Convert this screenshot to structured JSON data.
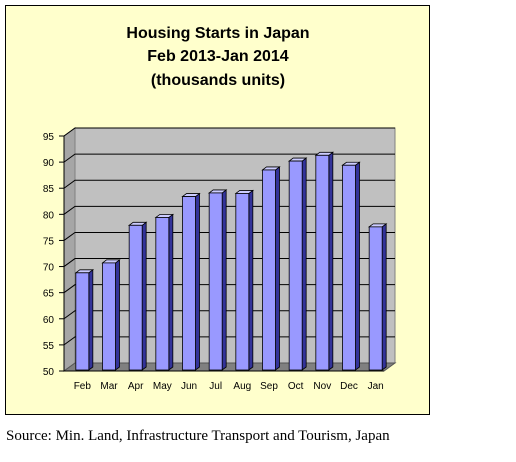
{
  "chart_data": {
    "type": "bar",
    "title": [
      "Housing Starts in Japan",
      "Feb 2013-Jan 2014",
      "(thousands units)"
    ],
    "categories": [
      "Feb",
      "Mar",
      "Apr",
      "May",
      "Jun",
      "Jul",
      "Aug",
      "Sep",
      "Oct",
      "Nov",
      "Dec",
      "Jan"
    ],
    "values": [
      68.8,
      70.7,
      77.9,
      79.4,
      83.4,
      84.1,
      84.0,
      88.5,
      90.2,
      91.3,
      89.4,
      77.6
    ],
    "ylim": [
      50,
      95
    ],
    "yticks": [
      "50",
      "55",
      "60",
      "65",
      "70",
      "75",
      "80",
      "85",
      "90",
      "95"
    ],
    "xlabel": "",
    "ylabel": "",
    "grid": true,
    "legend": "none",
    "style": "3d-column",
    "colors": {
      "background": "#FFFFCC",
      "plot_wall": "#C0C0C0",
      "bar_front": "#9999FF",
      "bar_side": "#333399",
      "bar_top": "#CCCCFF",
      "floor": "#808080"
    }
  },
  "source": "Source: Min. Land, Infrastructure Transport and Tourism, Japan"
}
